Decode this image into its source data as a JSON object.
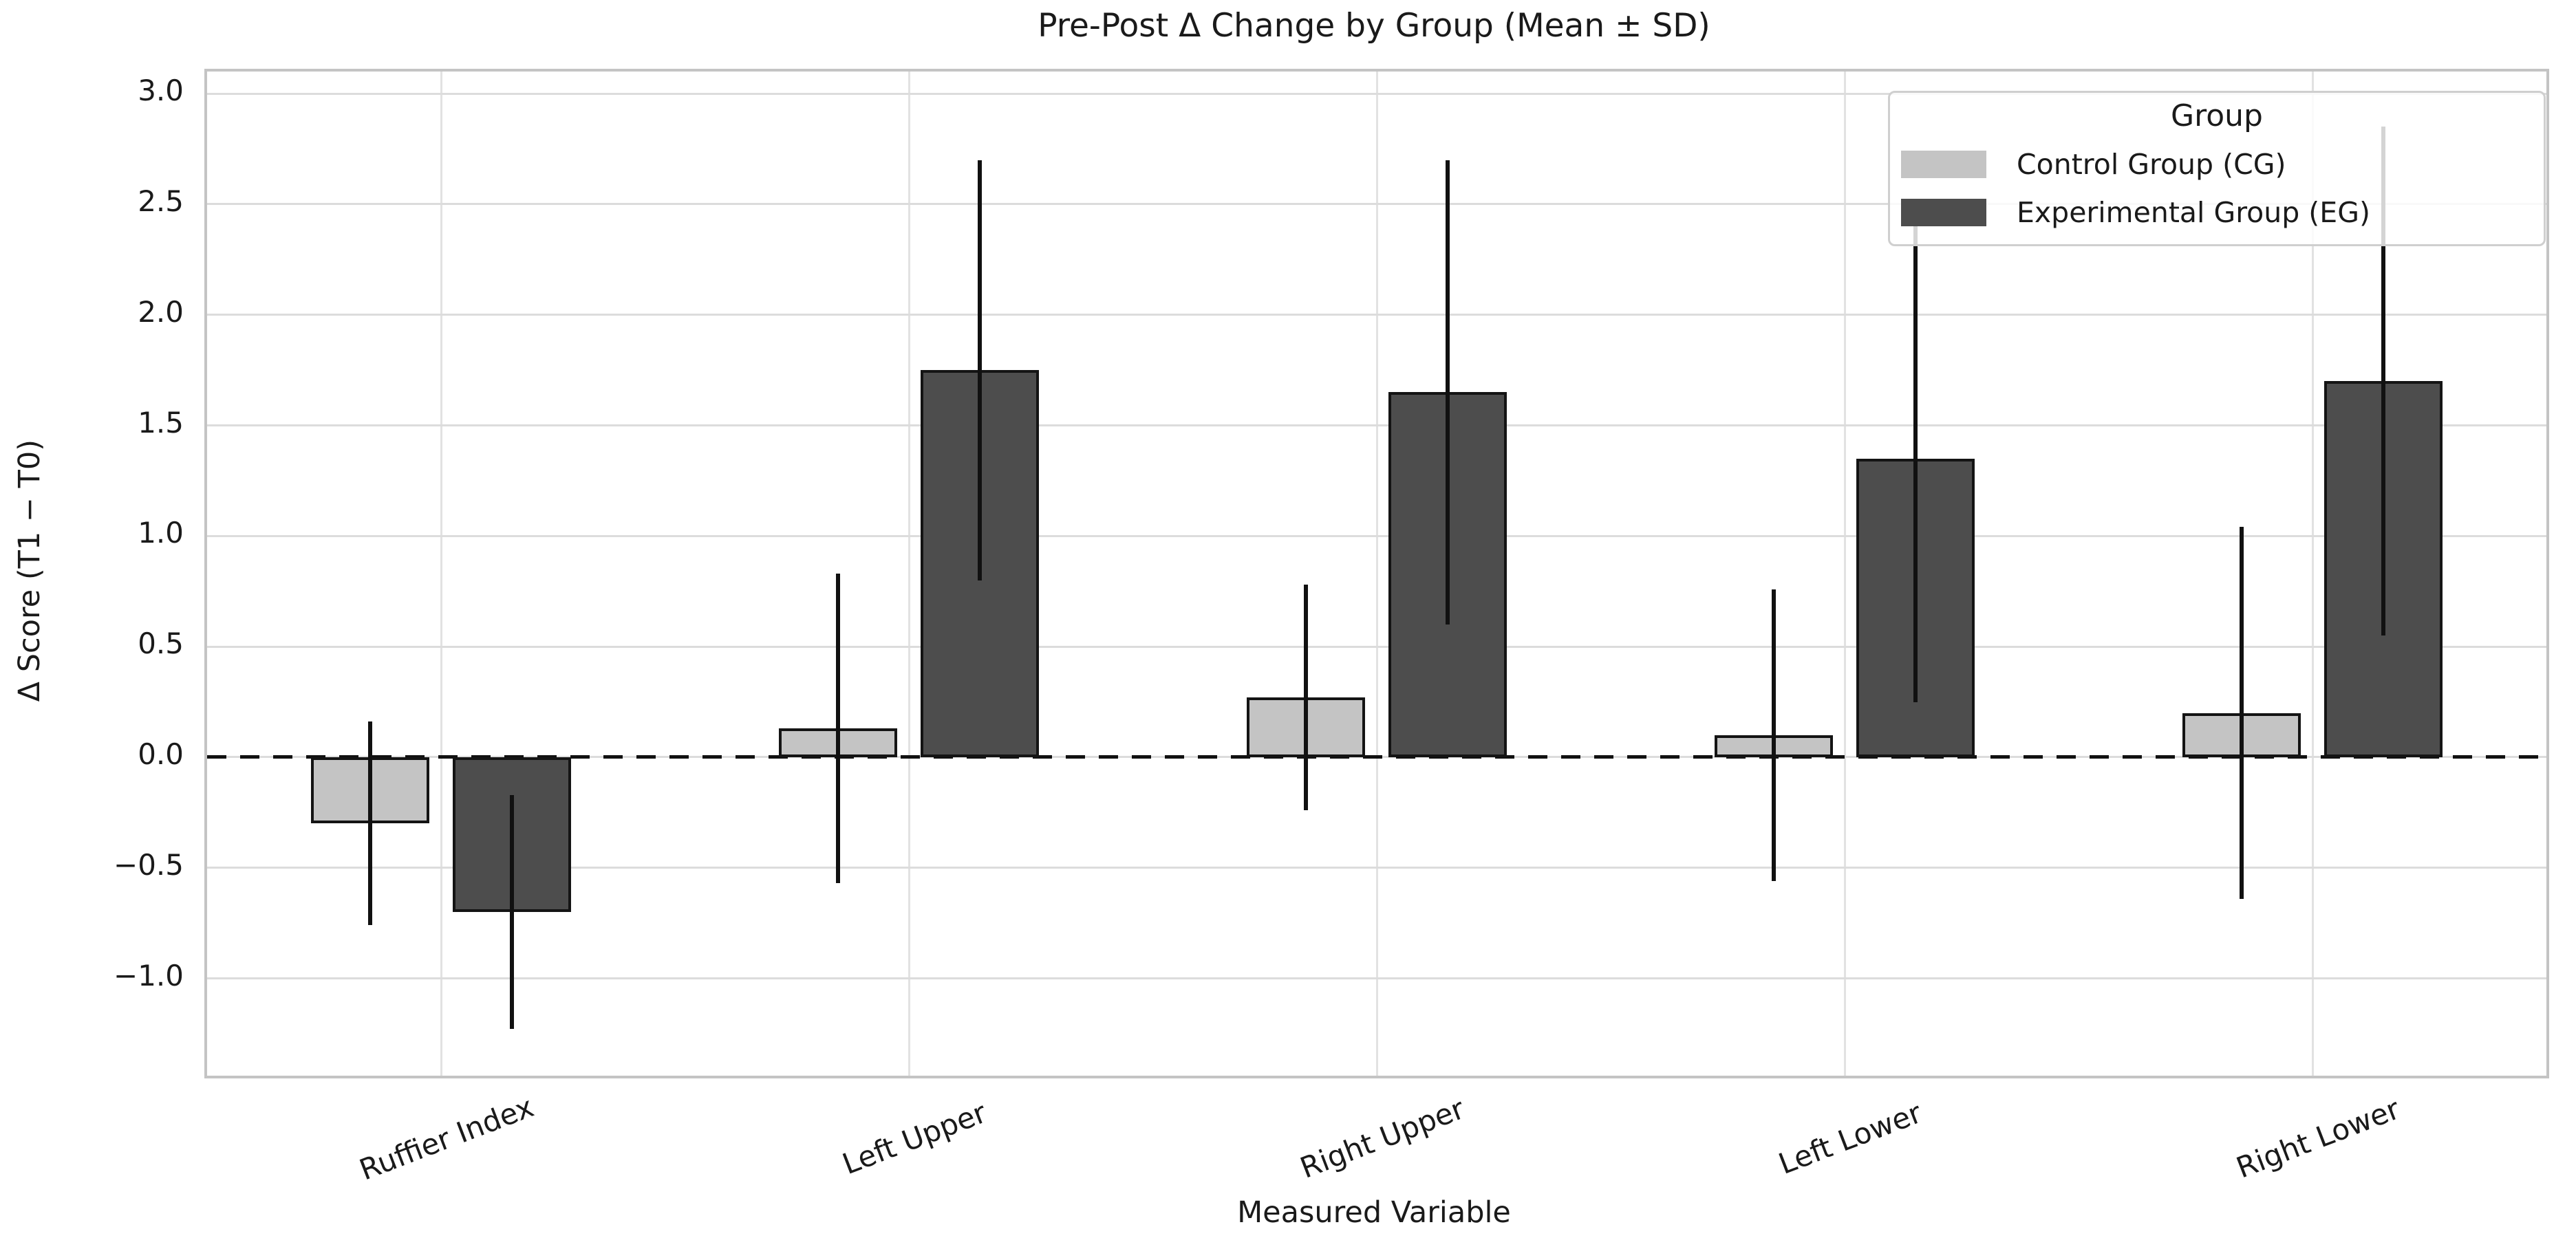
{
  "chart_data": {
    "type": "bar",
    "title": "Pre-Post Δ Change by Group (Mean ± SD)",
    "xlabel": "Measured Variable",
    "ylabel": "Δ Score (T1 − T0)",
    "legend_title": "Group",
    "legend_position": "upper right",
    "categories": [
      "Ruffier Index",
      "Left Upper",
      "Right Upper",
      "Left Lower",
      "Right Lower"
    ],
    "series": [
      {
        "name": "Control Group (CG)",
        "color": "#c4c4c4",
        "means": [
          -0.3,
          0.13,
          0.27,
          0.1,
          0.2
        ],
        "sd": [
          0.46,
          0.7,
          0.51,
          0.66,
          0.84
        ]
      },
      {
        "name": "Experimental Group (EG)",
        "color": "#4d4d4d",
        "means": [
          -0.7,
          1.75,
          1.65,
          1.35,
          1.7
        ],
        "sd": [
          0.53,
          0.95,
          1.05,
          1.1,
          1.15
        ]
      }
    ],
    "ylim": [
      -1.44,
      3.1
    ],
    "yticks": [
      3.0,
      2.5,
      2.0,
      1.5,
      1.0,
      0.5,
      0.0,
      -0.5,
      -1.0
    ],
    "grid": true,
    "zero_line": "dashed horizontal line at 0.0",
    "error_bars": "mean ± SD, no caps",
    "styles": {
      "bar_edge_color": "#141414",
      "errorbar_color": "#111111",
      "grid_color": "#dcdcdc",
      "spine_color": "#c4c4c4",
      "zero_line_color": "#111111",
      "background": "#ffffff"
    }
  }
}
